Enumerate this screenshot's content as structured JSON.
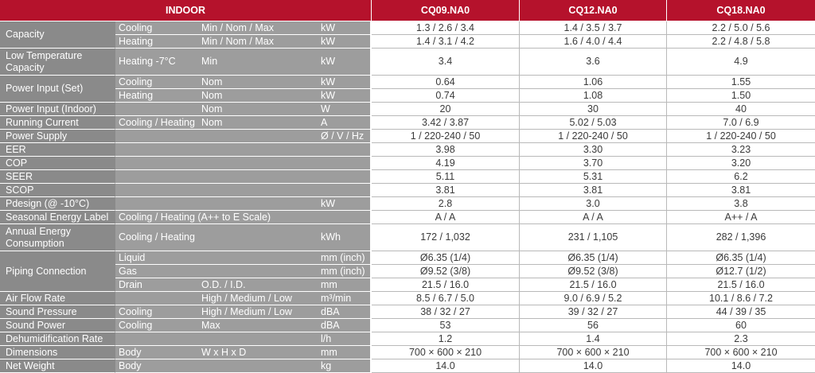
{
  "header": {
    "indoor": "INDOOR",
    "models": [
      "CQ09.NA0",
      "CQ12.NA0",
      "CQ18.NA0"
    ]
  },
  "rows": [
    {
      "c1": "Capacity",
      "c2": "Cooling",
      "c3": "Min / Nom / Max",
      "c4": "kW",
      "v": [
        "1.3 / 2.6 / 3.4",
        "1.4 / 3.5 / 3.7",
        "2.2 / 5.0 / 5.6"
      ]
    },
    {
      "c1": "",
      "c2": "Heating",
      "c3": "Min / Nom / Max",
      "c4": "kW",
      "v": [
        "1.4 / 3.1 / 4.2",
        "1.6 / 4.0 / 4.4",
        "2.2 / 4.8 / 5.8"
      ]
    },
    {
      "c1": "Low Temperature Capacity",
      "c2": "Heating -7°C",
      "c3": "Min",
      "c4": "kW",
      "v": [
        "3.4",
        "3.6",
        "4.9"
      ]
    },
    {
      "c1": "Power Input (Set)",
      "c2": "Cooling",
      "c3": "Nom",
      "c4": "kW",
      "v": [
        "0.64",
        "1.06",
        "1.55"
      ]
    },
    {
      "c1": "",
      "c2": "Heating",
      "c3": "Nom",
      "c4": "kW",
      "v": [
        "0.74",
        "1.08",
        "1.50"
      ]
    },
    {
      "c1": "Power Input (Indoor)",
      "c2": "",
      "c3": "Nom",
      "c4": "W",
      "v": [
        "20",
        "30",
        "40"
      ]
    },
    {
      "c1": "Running Current",
      "c2": "Cooling / Heating",
      "c3": "Nom",
      "c4": "A",
      "v": [
        "3.42 / 3.87",
        "5.02 / 5.03",
        "7.0 / 6.9"
      ]
    },
    {
      "c1": "Power Supply",
      "c2": "",
      "c3": "",
      "c4": "Ø / V / Hz",
      "v": [
        "1 / 220-240 / 50",
        "1 / 220-240 / 50",
        "1 / 220-240 / 50"
      ]
    },
    {
      "c1": "EER",
      "c2": "",
      "c3": "",
      "c4": "",
      "v": [
        "3.98",
        "3.30",
        "3.23"
      ]
    },
    {
      "c1": "COP",
      "c2": "",
      "c3": "",
      "c4": "",
      "v": [
        "4.19",
        "3.70",
        "3.20"
      ]
    },
    {
      "c1": "SEER",
      "c2": "",
      "c3": "",
      "c4": "",
      "v": [
        "5.11",
        "5.31",
        "6.2"
      ]
    },
    {
      "c1": "SCOP",
      "c2": "",
      "c3": "",
      "c4": "",
      "v": [
        "3.81",
        "3.81",
        "3.81"
      ]
    },
    {
      "c1": "Pdesign (@ -10°C)",
      "c2": "",
      "c3": "",
      "c4": "kW",
      "v": [
        "2.8",
        "3.0",
        "3.8"
      ]
    },
    {
      "c1": "Seasonal Energy Label",
      "c2": "Cooling / Heating (A++ to E Scale)",
      "c3": "",
      "c4": "",
      "v": [
        "A / A",
        "A / A",
        "A++ / A"
      ]
    },
    {
      "c1": "Annual Energy Consumption",
      "c2": "Cooling / Heating",
      "c3": "",
      "c4": "kWh",
      "v": [
        "172 / 1,032",
        "231 / 1,105",
        "282 / 1,396"
      ]
    },
    {
      "c1": "Piping Connection",
      "c2": "Liquid",
      "c3": "",
      "c4": "mm (inch)",
      "v": [
        "Ø6.35 (1/4)",
        "Ø6.35 (1/4)",
        "Ø6.35 (1/4)"
      ]
    },
    {
      "c1": "",
      "c2": "Gas",
      "c3": "",
      "c4": "mm (inch)",
      "v": [
        "Ø9.52 (3/8)",
        "Ø9.52 (3/8)",
        "Ø12.7 (1/2)"
      ]
    },
    {
      "c1": "",
      "c2": "Drain",
      "c3": "O.D. / I.D.",
      "c4": "mm",
      "v": [
        "21.5 / 16.0",
        "21.5 / 16.0",
        "21.5 / 16.0"
      ]
    },
    {
      "c1": "Air Flow Rate",
      "c2": "",
      "c3": "High / Medium / Low",
      "c4": "m³/min",
      "v": [
        "8.5 / 6.7 / 5.0",
        "9.0 / 6.9 / 5.2",
        "10.1 / 8.6 / 7.2"
      ]
    },
    {
      "c1": "Sound Pressure",
      "c2": "Cooling",
      "c3": "High / Medium / Low",
      "c4": "dBA",
      "v": [
        "38 / 32 / 27",
        "39 / 32 / 27",
        "44 / 39 / 35"
      ]
    },
    {
      "c1": "Sound Power",
      "c2": "Cooling",
      "c3": "Max",
      "c4": "dBA",
      "v": [
        "53",
        "56",
        "60"
      ]
    },
    {
      "c1": "Dehumidification Rate",
      "c2": "",
      "c3": "",
      "c4": "l/h",
      "v": [
        "1.2",
        "1.4",
        "2.3"
      ]
    },
    {
      "c1": "Dimensions",
      "c2": "Body",
      "c3": "W x H x D",
      "c4": "mm",
      "v": [
        "700 × 600 × 210",
        "700 × 600 × 210",
        "700 × 600 × 210"
      ]
    },
    {
      "c1": "Net Weight",
      "c2": "Body",
      "c3": "",
      "c4": "kg",
      "v": [
        "14.0",
        "14.0",
        "14.0"
      ]
    }
  ]
}
